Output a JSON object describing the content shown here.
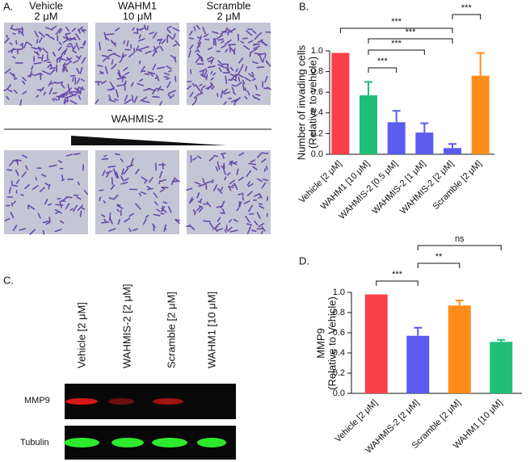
{
  "panels": {
    "a": {
      "label": "A.",
      "columns": [
        {
          "name": "Vehicle",
          "dose": "2 μM",
          "color": "#f03c46"
        },
        {
          "name": "WAHM1",
          "dose": "10 μM",
          "color": "#1fbf7a"
        },
        {
          "name": "Scramble",
          "dose": "2 μM",
          "color": "#ff8c1a"
        }
      ],
      "treatment": "WAHMIS-2",
      "treatment_color": "#5b5bf0"
    },
    "c": {
      "label": "C.",
      "lanes": [
        {
          "name": "Vehicle [2 μM]",
          "color": "#f03c46"
        },
        {
          "name": "WAHMIS-2 [2 μM]",
          "color": "#5b5bf0"
        },
        {
          "name": "Scramble [2 μM]",
          "color": "#ff8c1a"
        },
        {
          "name": "WAHM1 [10 μM]",
          "color": "#1fbf7a"
        }
      ],
      "rows": [
        "MMP9",
        "Tubulin"
      ]
    }
  },
  "chart_data": [
    {
      "type": "bar",
      "panel": "B.",
      "ylabel": [
        "Number of invading cells",
        "(Relative to vehicle)"
      ],
      "categories": [
        "Vehicle [2 μM]",
        "WAHM1 [10 μM]",
        "WAHMIS-2 [0.5 μM]",
        "WAHMIS-2 [1 μM]",
        "WAHMIS-2 [2 μM]",
        "Scramble [2 μM]"
      ],
      "values": [
        0.98,
        0.57,
        0.31,
        0.21,
        0.06,
        0.76
      ],
      "errors": [
        null,
        0.13,
        0.11,
        0.09,
        0.04,
        0.22
      ],
      "colors": [
        "#f9404a",
        "#1fbf7a",
        "#5b5bf0",
        "#5b5bf0",
        "#5b5bf0",
        "#ff8c1a"
      ],
      "ylim": [
        0,
        1
      ],
      "yticks": [
        {
          "value": 0,
          "label": "0.0"
        },
        0.2,
        0.4,
        0.6,
        0.8,
        {
          "value": 1,
          "label": "1.0"
        }
      ],
      "annotations": [
        "***",
        "***",
        "***",
        "***",
        "***"
      ]
    },
    {
      "type": "bar",
      "panel": "D.",
      "ylabel": [
        "MMP9",
        "(Relative to Vehicle)"
      ],
      "categories": [
        "Vehicle [2 μM]",
        "WAHMIS-2 [2 μM]",
        "Scramble [2 μM]",
        "WAHM1 [10 μM]"
      ],
      "values": [
        0.98,
        0.57,
        0.87,
        0.51
      ],
      "errors": [
        null,
        0.08,
        0.05,
        0.02
      ],
      "colors": [
        "#f9404a",
        "#5b5bf0",
        "#ff8c1a",
        "#1fbf7a"
      ],
      "ylim": [
        0,
        1
      ],
      "yticks": [
        {
          "value": 0,
          "label": "0.0"
        },
        0.2,
        0.4,
        0.6,
        0.8,
        {
          "value": 1,
          "label": "1.0"
        }
      ],
      "annotations": [
        "***",
        "**",
        "ns"
      ]
    }
  ]
}
